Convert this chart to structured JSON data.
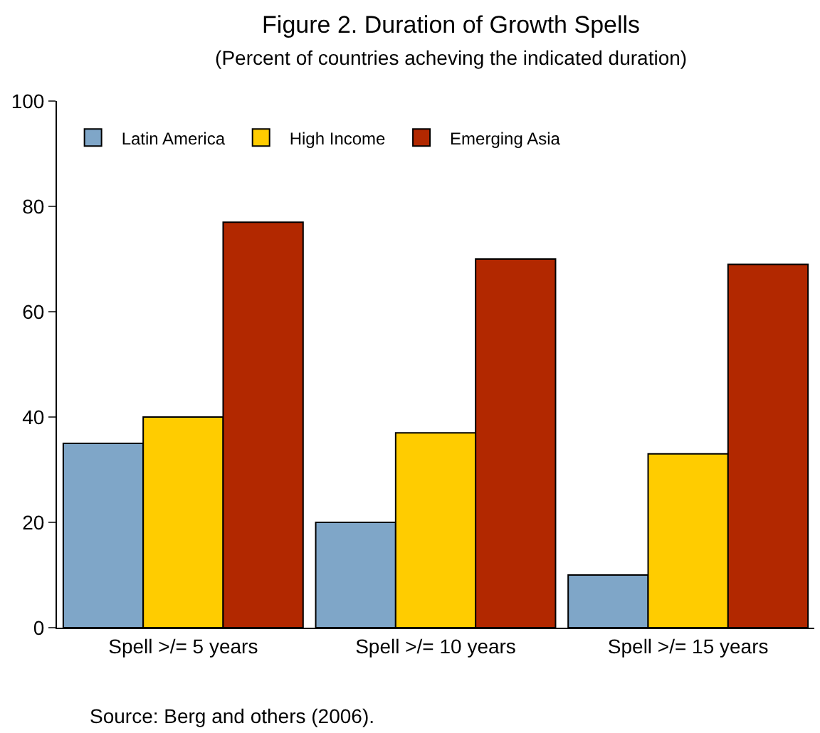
{
  "chart_data": {
    "type": "bar",
    "title": "Figure 2. Duration of Growth Spells",
    "subtitle": "(Percent of countries acheving the indicated duration)",
    "categories": [
      "Spell >/= 5 years",
      "Spell >/= 10 years",
      "Spell >/= 15 years"
    ],
    "series": [
      {
        "name": "Latin America",
        "color": "#7fa6c8",
        "values": [
          35,
          20,
          10
        ]
      },
      {
        "name": "High Income",
        "color": "#ffcc00",
        "values": [
          40,
          37,
          33
        ]
      },
      {
        "name": "Emerging Asia",
        "color": "#b22800",
        "values": [
          77,
          70,
          69
        ]
      }
    ],
    "ylim": [
      0,
      100
    ],
    "yticks": [
      0,
      20,
      40,
      60,
      80,
      100
    ],
    "legend": "top left",
    "annotations": [
      "Source: Berg and others (2006)."
    ]
  }
}
